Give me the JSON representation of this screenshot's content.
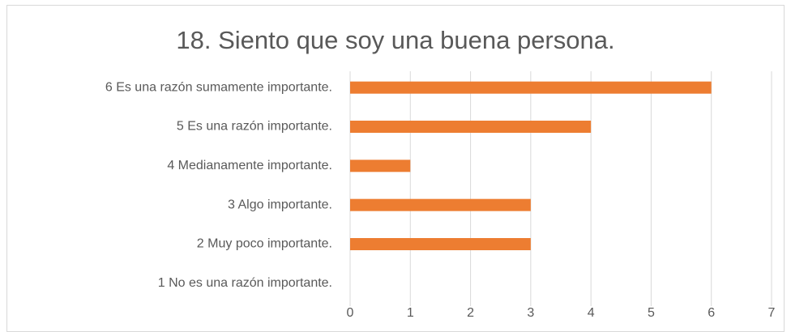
{
  "chart_data": {
    "type": "bar",
    "orientation": "horizontal",
    "title": "18. Siento que soy una buena persona.",
    "categories": [
      "6 Es una razón sumamente importante.",
      "5 Es una razón importante.",
      "4 Medianamente importante.",
      "3 Algo importante.",
      "2 Muy poco importante.",
      "1 No es una razón importante."
    ],
    "values": [
      6,
      4,
      1,
      3,
      3,
      0
    ],
    "color": "#ed7d31",
    "xlim": [
      0,
      7
    ],
    "xticks": [
      0,
      1,
      2,
      3,
      4,
      5,
      6,
      7
    ],
    "grid": true
  }
}
